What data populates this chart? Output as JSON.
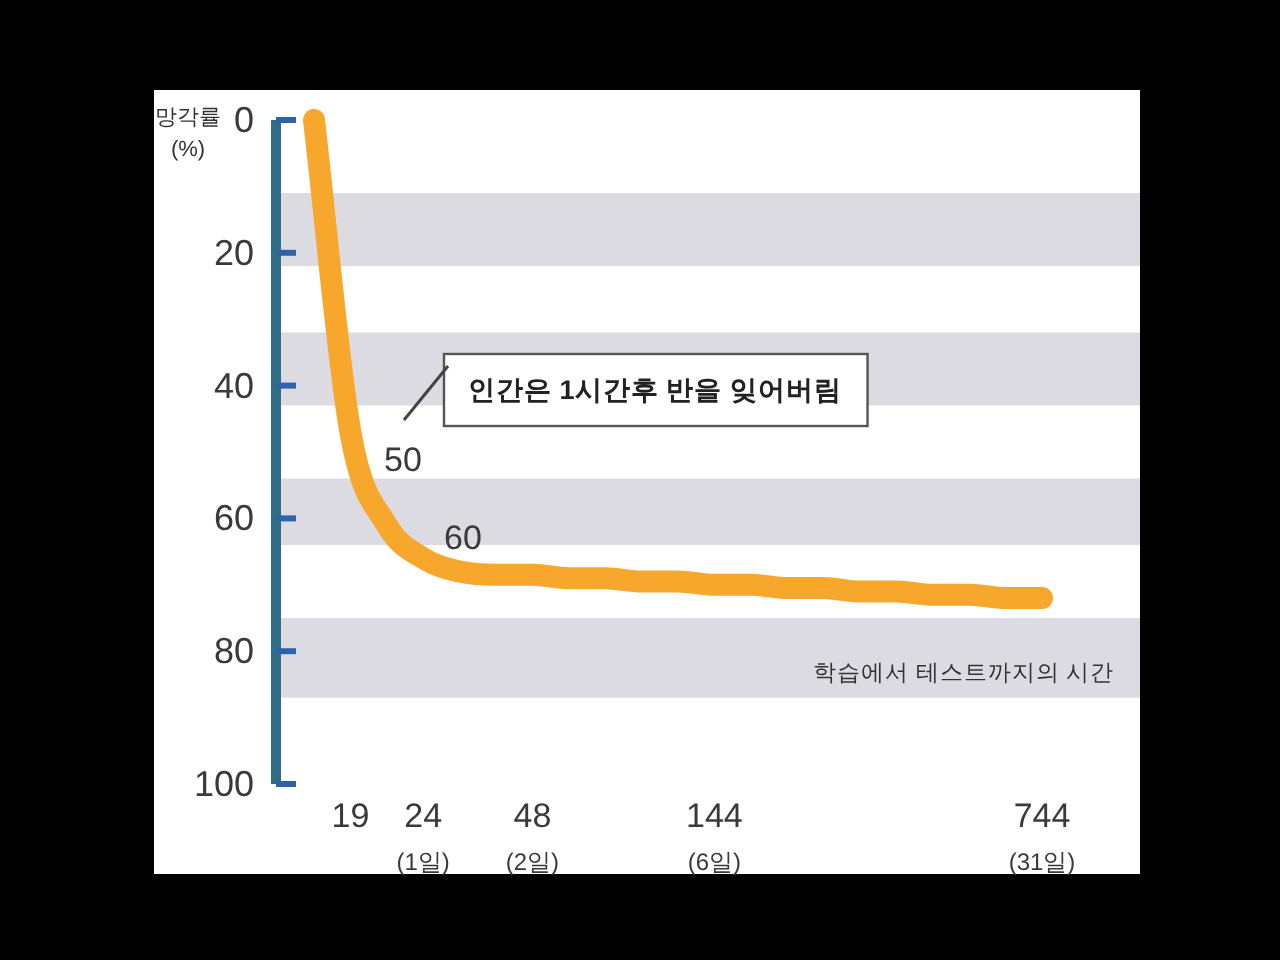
{
  "chart_data": {
    "type": "line",
    "ylabel": "망각률\n(%)",
    "xlabel": "학습에서 테스트까지의 시간",
    "categories": [
      null,
      "19",
      null,
      "24\n(1일)",
      null,
      null,
      "48\n(2일)",
      null,
      null,
      null,
      null,
      "144\n(6일)",
      null,
      null,
      null,
      null,
      null,
      null,
      null,
      null,
      "744\n(31일)"
    ],
    "series": [
      {
        "color": "#f7a72b",
        "values": [
          0,
          47,
          61,
          66,
          68,
          68.5,
          68.5,
          69,
          69,
          69.5,
          69.5,
          70,
          70,
          70.5,
          70.5,
          71,
          71,
          71.5,
          71.5,
          72,
          72
        ]
      }
    ],
    "ylim": [
      100,
      0
    ],
    "yticks": [
      0,
      20,
      40,
      60,
      80,
      100
    ],
    "bands": [
      {
        "axis": "y",
        "from": 11,
        "to": 22,
        "color": "#dddbe2"
      },
      {
        "axis": "y",
        "from": 32,
        "to": 43,
        "color": "#dddbe2"
      },
      {
        "axis": "y",
        "from": 54,
        "to": 64,
        "color": "#dddbe2"
      },
      {
        "axis": "y",
        "from": 75,
        "to": 87,
        "color": "#dddbe2"
      }
    ],
    "annotations": [
      "50",
      "60",
      "인간은 1시간후 반을 잊어버림"
    ]
  }
}
